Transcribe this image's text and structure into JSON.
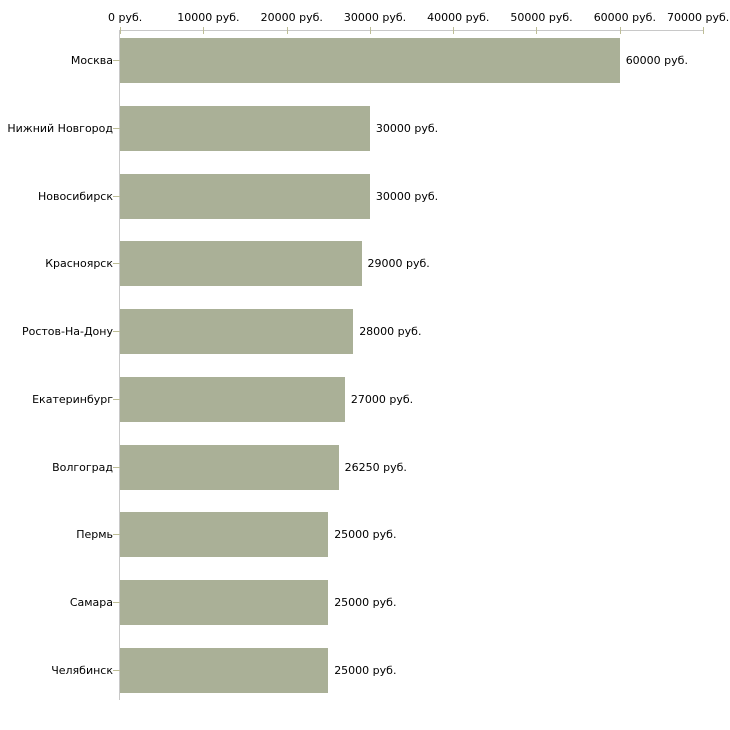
{
  "chart_data": {
    "type": "bar",
    "orientation": "horizontal",
    "title": "",
    "categories": [
      "Москва",
      "Нижний Новгород",
      "Новосибирск",
      "Красноярск",
      "Ростов-На-Дону",
      "Екатеринбург",
      "Волгоград",
      "Пермь",
      "Самара",
      "Челябинск"
    ],
    "values": [
      60000,
      30000,
      30000,
      29000,
      28000,
      27000,
      26250,
      25000,
      25000,
      25000
    ],
    "value_labels": [
      "60000 руб.",
      "30000 руб.",
      "30000 руб.",
      "29000 руб.",
      "28000 руб.",
      "27000 руб.",
      "26250 руб.",
      "25000 руб.",
      "25000 руб.",
      "25000 руб."
    ],
    "unit": "руб.",
    "xlabel": "",
    "ylabel": "",
    "xlim": [
      0,
      70000
    ],
    "x_ticks": [
      0,
      10000,
      20000,
      30000,
      40000,
      50000,
      60000,
      70000
    ],
    "x_tick_labels": [
      "0 руб.",
      "10000 руб.",
      "20000 руб.",
      "30000 руб.",
      "40000 руб.",
      "50000 руб.",
      "60000 руб.",
      "70000 руб."
    ],
    "grid": false,
    "legend_position": "none"
  },
  "colors": {
    "bar": "#aab097",
    "axis_line": "#c8c8c8",
    "tick": "#bdbd96",
    "text": "#000000",
    "background": "#ffffff"
  }
}
